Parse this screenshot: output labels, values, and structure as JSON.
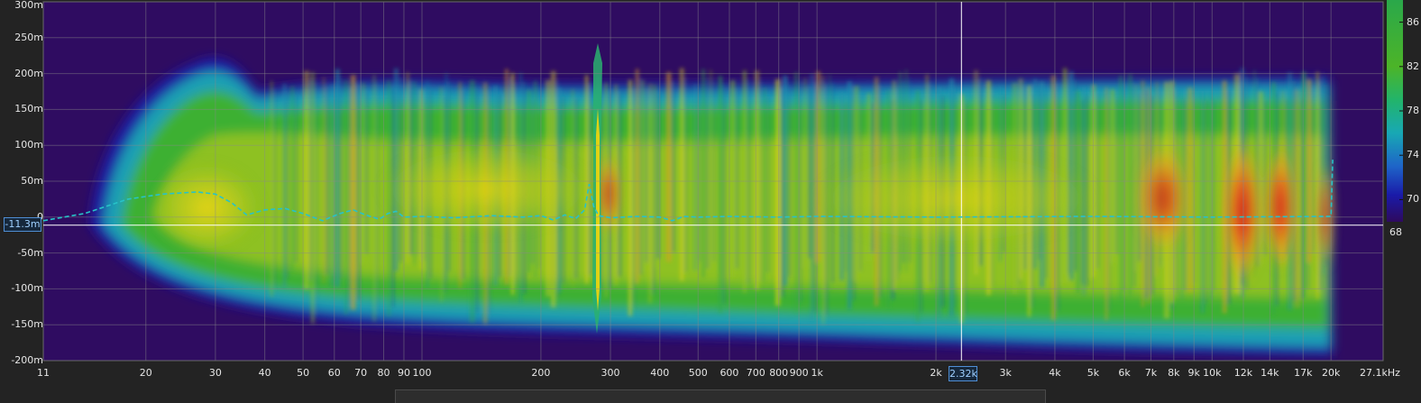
{
  "chart_data": {
    "type": "heatmap",
    "x_scale": "log",
    "xlim": [
      11,
      27100
    ],
    "ylim": [
      -200,
      300
    ],
    "y_unit": "m",
    "x_ticks": [
      "11",
      "20",
      "30",
      "40",
      "50",
      "60",
      "70",
      "80",
      "90",
      "100",
      "200",
      "300",
      "400",
      "500",
      "600",
      "700",
      "800",
      "900",
      "1k",
      "2k",
      "3k",
      "4k",
      "5k",
      "6k",
      "7k",
      "8k",
      "9k",
      "10k",
      "12k",
      "14k",
      "17k",
      "20k",
      "27.1kHz"
    ],
    "x_tick_values": [
      11,
      20,
      30,
      40,
      50,
      60,
      70,
      80,
      90,
      100,
      200,
      300,
      400,
      500,
      600,
      700,
      800,
      900,
      1000,
      2000,
      3000,
      4000,
      5000,
      6000,
      7000,
      8000,
      9000,
      10000,
      12000,
      14000,
      17000,
      20000,
      27100
    ],
    "y_ticks": [
      "300m",
      "250m",
      "200m",
      "150m",
      "100m",
      "50m",
      "0",
      "-50m",
      "-100m",
      "-150m",
      "-200m"
    ],
    "y_tick_values": [
      300,
      250,
      200,
      150,
      100,
      50,
      0,
      -50,
      -100,
      -150,
      -200
    ],
    "colorbar_ticks": [
      "86",
      "82",
      "78",
      "74",
      "70"
    ],
    "colorbar_tick_values": [
      86,
      82,
      78,
      74,
      70
    ],
    "colorbar_min_label": "68",
    "colorbar_range": [
      68,
      88
    ],
    "colormap": [
      "#2e0a5e",
      "#1a1aa8",
      "#1e64c8",
      "#18a8b4",
      "#22b46a",
      "#4cb428",
      "#a8c81e",
      "#e0d214",
      "#eca01c",
      "#e25a1e",
      "#cc1e1c"
    ],
    "cursor_x_label": "2.32k",
    "cursor_x_value": 2320,
    "cursor_y_label": "-11.3m",
    "cursor_y_value": -11.3,
    "phase_series": {
      "style": "dashed",
      "color": "#27c3c8",
      "x": [
        11,
        14,
        18,
        22,
        27,
        30,
        33,
        36,
        40,
        45,
        50,
        56,
        62,
        67,
        72,
        78,
        82,
        86,
        90,
        100,
        120,
        150,
        180,
        200,
        215,
        230,
        245,
        258,
        265,
        272,
        280,
        300,
        350,
        400,
        430,
        460,
        500,
        600,
        800,
        1000,
        2000,
        5000,
        10000,
        20000,
        20200
      ],
      "y": [
        -5,
        5,
        25,
        32,
        35,
        32,
        20,
        3,
        10,
        12,
        5,
        -5,
        5,
        10,
        3,
        -3,
        5,
        8,
        0,
        1,
        -1,
        2,
        0,
        2,
        -4,
        3,
        -2,
        10,
        46,
        15,
        2,
        -1,
        1,
        0,
        -5,
        1,
        0,
        1,
        0,
        1,
        0,
        1,
        0,
        1,
        80
      ]
    }
  }
}
